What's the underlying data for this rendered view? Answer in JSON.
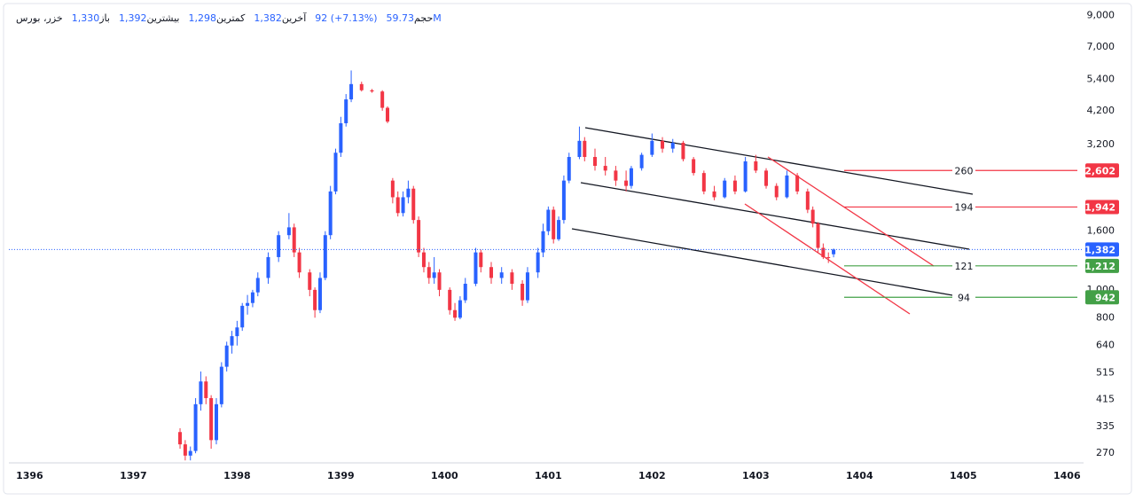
{
  "header": {
    "symbol": "خزر، بورس",
    "items": [
      {
        "label": "باز",
        "value": "1,330"
      },
      {
        "label": "بیشترین",
        "value": "1,392"
      },
      {
        "label": "کمترین",
        "value": "1,298"
      },
      {
        "label": "آخرین",
        "value": "1,382"
      },
      {
        "label": "",
        "value": "92 (+7.13%)"
      },
      {
        "label": "حجم",
        "value": "59.73M"
      }
    ]
  },
  "chart_data": {
    "type": "candlestick",
    "log_scale": true,
    "up_color": "#2962ff",
    "down_color": "#f23645",
    "xlim": [
      1395.8,
      1406.1
    ],
    "xticks": [
      1396,
      1397,
      1398,
      1399,
      1400,
      1401,
      1402,
      1403,
      1404,
      1405,
      1406
    ],
    "ylim": [
      250,
      9500
    ],
    "yticks": [
      {
        "value": 9000,
        "label": "9,000"
      },
      {
        "value": 7000,
        "label": "7,000"
      },
      {
        "value": 5400,
        "label": "5,400"
      },
      {
        "value": 4200,
        "label": "4,200"
      },
      {
        "value": 3200,
        "label": "3,200"
      },
      {
        "value": 1600,
        "label": "1,600"
      },
      {
        "value": 1000,
        "label": "1,000"
      },
      800,
      640,
      515,
      415,
      335,
      270
    ],
    "x": [
      1397.45,
      1397.5,
      1397.55,
      1397.6,
      1397.65,
      1397.7,
      1397.75,
      1397.8,
      1397.85,
      1397.9,
      1397.95,
      1398.0,
      1398.05,
      1398.1,
      1398.15,
      1398.2,
      1398.3,
      1398.4,
      1398.5,
      1398.55,
      1398.6,
      1398.7,
      1398.75,
      1398.8,
      1398.85,
      1398.9,
      1398.95,
      1399.0,
      1399.05,
      1399.1,
      1399.2,
      1399.3,
      1399.4,
      1399.45,
      1399.5,
      1399.55,
      1399.6,
      1399.65,
      1399.7,
      1399.75,
      1399.8,
      1399.85,
      1399.9,
      1399.95,
      1400.05,
      1400.1,
      1400.15,
      1400.2,
      1400.3,
      1400.35,
      1400.45,
      1400.55,
      1400.65,
      1400.75,
      1400.8,
      1400.9,
      1400.95,
      1401.0,
      1401.05,
      1401.1,
      1401.15,
      1401.2,
      1401.3,
      1401.35,
      1401.45,
      1401.55,
      1401.65,
      1401.75,
      1401.8,
      1401.9,
      1402.0,
      1402.1,
      1402.2,
      1402.3,
      1402.4,
      1402.5,
      1402.6,
      1402.7,
      1402.8,
      1402.9,
      1403.0,
      1403.1,
      1403.2,
      1403.3,
      1403.4,
      1403.5,
      1403.55,
      1403.6,
      1403.65,
      1403.7,
      1403.75
    ],
    "open": [
      320,
      290,
      265,
      275,
      400,
      480,
      420,
      300,
      400,
      540,
      640,
      690,
      740,
      880,
      900,
      980,
      1100,
      1300,
      1550,
      1650,
      1350,
      1150,
      1000,
      850,
      1100,
      1550,
      2200,
      3000,
      3800,
      4600,
      5200,
      4950,
      4900,
      4300,
      2400,
      2100,
      1850,
      2100,
      2250,
      1750,
      1350,
      1200,
      1100,
      1150,
      1000,
      850,
      800,
      920,
      1050,
      1350,
      1200,
      1100,
      1150,
      1050,
      920,
      1150,
      1350,
      1600,
      1900,
      1500,
      1750,
      2400,
      2900,
      3300,
      2900,
      2700,
      2600,
      2400,
      2300,
      2650,
      2950,
      3300,
      3100,
      3250,
      2850,
      2550,
      2200,
      2100,
      2400,
      2200,
      2800,
      2600,
      2300,
      2100,
      2500,
      2200,
      1900,
      1700,
      1400,
      1300,
      1330
    ],
    "high": [
      330,
      300,
      285,
      420,
      520,
      500,
      430,
      420,
      560,
      660,
      720,
      780,
      900,
      960,
      1000,
      1150,
      1350,
      1600,
      1850,
      1700,
      1400,
      1180,
      1020,
      1150,
      1600,
      2300,
      3100,
      4000,
      4800,
      5800,
      5300,
      5000,
      4950,
      4350,
      2450,
      2200,
      2200,
      2400,
      2300,
      1800,
      1400,
      1250,
      1300,
      1180,
      1020,
      900,
      950,
      1100,
      1400,
      1380,
      1250,
      1200,
      1180,
      1080,
      1200,
      1400,
      1700,
      1950,
      1950,
      1800,
      2500,
      3000,
      3700,
      3400,
      3100,
      2900,
      2700,
      2600,
      2700,
      3000,
      3500,
      3400,
      3350,
      3300,
      2900,
      2600,
      2300,
      2450,
      2500,
      2900,
      2950,
      2650,
      2350,
      2600,
      2550,
      2250,
      1950,
      1720,
      1450,
      1350,
      1392
    ],
    "low": [
      280,
      255,
      255,
      270,
      380,
      400,
      280,
      290,
      390,
      520,
      600,
      640,
      720,
      820,
      870,
      950,
      1050,
      1250,
      1500,
      1300,
      1100,
      950,
      800,
      830,
      1080,
      1500,
      2150,
      2900,
      3700,
      4500,
      4900,
      4850,
      4200,
      3800,
      2000,
      1800,
      1800,
      2000,
      1700,
      1300,
      1150,
      1050,
      1050,
      950,
      820,
      780,
      790,
      900,
      1030,
      1150,
      1050,
      1050,
      1000,
      880,
      900,
      1100,
      1300,
      1550,
      1450,
      1480,
      1700,
      2350,
      2850,
      2800,
      2600,
      2500,
      2300,
      2200,
      2250,
      2600,
      2900,
      3000,
      3000,
      2800,
      2500,
      2150,
      2050,
      2080,
      2150,
      2180,
      2550,
      2250,
      2050,
      2080,
      2150,
      1850,
      1650,
      1350,
      1280,
      1240,
      1298
    ],
    "close": [
      290,
      265,
      275,
      400,
      480,
      420,
      300,
      400,
      540,
      640,
      690,
      740,
      880,
      900,
      980,
      1100,
      1300,
      1550,
      1650,
      1350,
      1150,
      1000,
      850,
      1100,
      1550,
      2200,
      3000,
      3800,
      4600,
      5200,
      4950,
      4900,
      4300,
      3850,
      2100,
      1850,
      2100,
      2250,
      1750,
      1350,
      1200,
      1100,
      1150,
      1000,
      850,
      800,
      920,
      1050,
      1350,
      1200,
      1100,
      1150,
      1050,
      920,
      1150,
      1350,
      1600,
      1900,
      1500,
      1750,
      2400,
      2900,
      3300,
      2900,
      2700,
      2600,
      2400,
      2300,
      2650,
      2950,
      3300,
      3100,
      3250,
      2850,
      2550,
      2200,
      2100,
      2400,
      2200,
      2800,
      2600,
      2300,
      2100,
      2500,
      2200,
      1900,
      1700,
      1400,
      1300,
      1290,
      1382
    ],
    "last_price": {
      "value": 1382,
      "label": "1,382",
      "color": "#2962ff"
    },
    "levels": [
      {
        "value": 2602,
        "price_label": "2,602",
        "label": "260",
        "color": "#f23645"
      },
      {
        "value": 1942,
        "price_label": "1,942",
        "label": "194",
        "color": "#f23645"
      },
      {
        "value": 1212,
        "price_label": "1,212",
        "label": "121",
        "color": "#43a047"
      },
      {
        "value": 942,
        "price_label": "942",
        "label": "94",
        "color": "#43a047"
      }
    ]
  }
}
